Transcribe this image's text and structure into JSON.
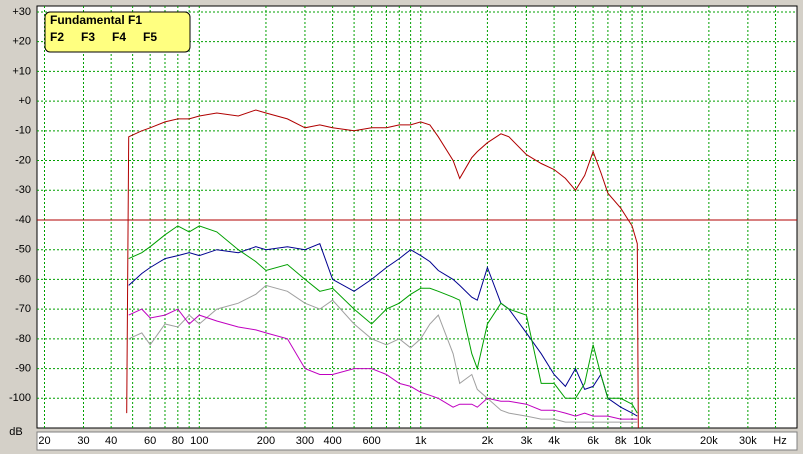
{
  "chart_data": {
    "type": "line",
    "x_label": "Hz",
    "y_label": "dB",
    "x": [
      47,
      48,
      55,
      60,
      70,
      80,
      90,
      100,
      120,
      150,
      180,
      200,
      250,
      300,
      350,
      400,
      500,
      600,
      700,
      800,
      900,
      1000,
      1100,
      1200,
      1400,
      1500,
      1700,
      1800,
      2000,
      2300,
      2500,
      3000,
      3500,
      4000,
      4500,
      5000,
      5500,
      6000,
      6500,
      7000,
      8000,
      9000,
      9500,
      9600
    ],
    "series": [
      {
        "name": "Fundamental F1",
        "color": "#b00000",
        "values": [
          -105,
          -12,
          -10,
          -9,
          -7,
          -6,
          -6,
          -5,
          -4,
          -5,
          -3,
          -4,
          -6,
          -9,
          -8,
          -9,
          -10,
          -9,
          -9,
          -8,
          -8,
          -7,
          -8,
          -12,
          -20,
          -26,
          -19,
          -17,
          -14,
          -11,
          -12,
          -18,
          -21,
          -23,
          -26,
          -30,
          -25,
          -17,
          -24,
          -31,
          -36,
          -42,
          -48,
          -110
        ]
      },
      {
        "name": "F2",
        "color": "#00a000",
        "values": [
          null,
          -53,
          -51,
          -49,
          -45,
          -42,
          -44,
          -42,
          -44,
          -50,
          -54,
          -57,
          -55,
          -60,
          -64,
          -63,
          -70,
          -75,
          -70,
          -68,
          -65,
          -63,
          -63,
          -64,
          -66,
          -67,
          -85,
          -90,
          -75,
          -68,
          -70,
          -72,
          -95,
          -95,
          -100,
          -100,
          -95,
          -82,
          -92,
          -100,
          -100,
          -102,
          -105,
          null
        ]
      },
      {
        "name": "F3",
        "color": "#000090",
        "values": [
          null,
          -62,
          -58,
          -56,
          -53,
          -52,
          -51,
          -52,
          -50,
          -51,
          -49,
          -50,
          -49,
          -50,
          -48,
          -60,
          -64,
          -60,
          -56,
          -53,
          -50,
          -52,
          -54,
          -57,
          -60,
          -62,
          -66,
          -67,
          -56,
          -68,
          -70,
          -78,
          -85,
          -92,
          -96,
          -90,
          -97,
          -96,
          -92,
          -100,
          -103,
          -105,
          -106,
          null
        ]
      },
      {
        "name": "F4",
        "color": "#c000c0",
        "values": [
          null,
          -72,
          -70,
          -73,
          -72,
          -70,
          -75,
          -72,
          -74,
          -76,
          -77,
          -78,
          -80,
          -90,
          -92,
          -92,
          -90,
          -90,
          -92,
          -95,
          -96,
          -98,
          -99,
          -100,
          -103,
          -102,
          -102,
          -103,
          -100,
          -101,
          -101,
          -102,
          -104,
          -104,
          -105,
          -106,
          -105,
          -106,
          -106,
          -106,
          -107,
          -107,
          -107,
          null
        ]
      },
      {
        "name": "F5",
        "color": "#a0a0a0",
        "values": [
          null,
          -80,
          -78,
          -82,
          -75,
          -76,
          -72,
          -75,
          -70,
          -68,
          -65,
          -62,
          -64,
          -68,
          -70,
          -67,
          -75,
          -80,
          -82,
          -80,
          -83,
          -80,
          -75,
          -72,
          -85,
          -95,
          -92,
          -97,
          -100,
          -104,
          -105,
          -106,
          -107,
          -107,
          -108,
          -108,
          -108,
          -108,
          -108,
          -108,
          -108,
          -108,
          -108,
          null
        ]
      }
    ],
    "xscale": "log",
    "xlim": [
      18.5,
      50000
    ],
    "ylim": [
      -110,
      32
    ],
    "xticks": [
      20,
      30,
      40,
      60,
      80,
      100,
      200,
      300,
      400,
      600,
      {
        "value": 1000,
        "label": "1k"
      },
      {
        "value": 2000,
        "label": "2k"
      },
      {
        "value": 3000,
        "label": "3k"
      },
      {
        "value": 4000,
        "label": "4k"
      },
      {
        "value": 6000,
        "label": "6k"
      },
      {
        "value": 8000,
        "label": "8k"
      },
      {
        "value": 10000,
        "label": "10k"
      },
      {
        "value": 20000,
        "label": "20k"
      },
      {
        "value": 30000,
        "label": "30k"
      }
    ],
    "minor_xgrid": [
      50,
      70,
      90,
      500,
      700,
      800,
      900,
      5000,
      7000,
      9000,
      40000
    ],
    "yticks": [
      {
        "value": 30,
        "label": "+30"
      },
      {
        "value": 20,
        "label": "+20"
      },
      {
        "value": 10,
        "label": "+10"
      },
      {
        "value": 0,
        "label": "+0"
      },
      -10,
      -20,
      -30,
      -40,
      -50,
      -60,
      -70,
      -80,
      -90,
      -100
    ],
    "reference_line": {
      "value": -40,
      "color": "#b00000"
    },
    "grid": true,
    "legend": "top-left"
  }
}
